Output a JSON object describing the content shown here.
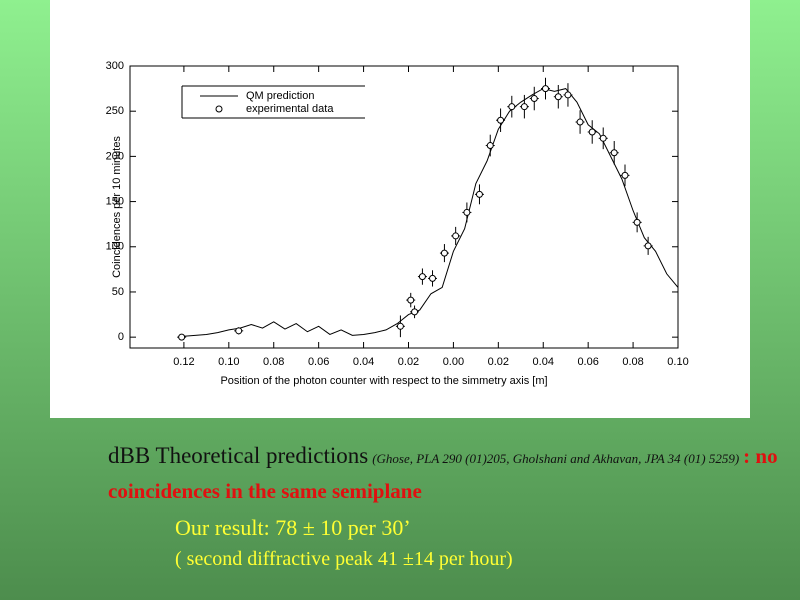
{
  "chart_data": {
    "type": "scatter",
    "xlabel": "Position of the photon counter with respect to the simmetry axis [m]",
    "ylabel": "Coincidences per 10 minutes",
    "xlim": [
      -0.144,
      0.1
    ],
    "ylim": [
      -12,
      300
    ],
    "xticks": [
      {
        "value": -0.12,
        "label": "0.12"
      },
      {
        "value": -0.1,
        "label": "0.10"
      },
      {
        "value": -0.08,
        "label": "0.08"
      },
      {
        "value": -0.06,
        "label": "0.06"
      },
      {
        "value": -0.04,
        "label": "0.04"
      },
      {
        "value": -0.02,
        "label": "0.02"
      },
      {
        "value": 0,
        "label": "0.00"
      },
      {
        "value": 0.02,
        "label": "0.02"
      },
      {
        "value": 0.04,
        "label": "0.04"
      },
      {
        "value": 0.06,
        "label": "0.06"
      },
      {
        "value": 0.08,
        "label": "0.08"
      },
      {
        "value": 0.1,
        "label": "0.10"
      }
    ],
    "yticks": [
      0,
      50,
      100,
      150,
      200,
      250,
      300
    ],
    "legend": "upper left",
    "series": [
      {
        "name": "QM prediction",
        "kind": "line",
        "color": "#000000",
        "x": [
          -0.12,
          -0.115,
          -0.11,
          -0.105,
          -0.1,
          -0.095,
          -0.09,
          -0.085,
          -0.08,
          -0.075,
          -0.07,
          -0.065,
          -0.06,
          -0.055,
          -0.05,
          -0.045,
          -0.04,
          -0.035,
          -0.03,
          -0.025,
          -0.02,
          -0.015,
          -0.01,
          -0.005,
          0,
          0.005,
          0.01,
          0.015,
          0.02,
          0.025,
          0.03,
          0.035,
          0.04,
          0.045,
          0.05,
          0.055,
          0.06,
          0.065,
          0.07,
          0.075,
          0.08,
          0.085,
          0.09,
          0.095,
          0.1
        ],
        "values": [
          1,
          2,
          3,
          5,
          8,
          10,
          14,
          10,
          17,
          9,
          15,
          6,
          12,
          3,
          8,
          2,
          3,
          5,
          8,
          15,
          25,
          30,
          48,
          55,
          95,
          120,
          170,
          195,
          230,
          250,
          260,
          268,
          275,
          272,
          275,
          260,
          235,
          225,
          200,
          175,
          140,
          110,
          95,
          70,
          55
        ]
      },
      {
        "name": "experimental data",
        "kind": "points",
        "color": "#000000",
        "x": [
          -0.121,
          -0.0956,
          -0.0236,
          -0.019,
          -0.0173,
          -0.0138,
          -0.0093,
          -0.004,
          0.001,
          0.006,
          0.0116,
          0.0164,
          0.021,
          0.026,
          0.0316,
          0.036,
          0.041,
          0.0467,
          0.051,
          0.0564,
          0.0618,
          0.0667,
          0.0716,
          0.0764,
          0.0818,
          0.0867
        ],
        "values": [
          0,
          7,
          12,
          41,
          28,
          67,
          65,
          93,
          112,
          138,
          158,
          212,
          240,
          255,
          255,
          264,
          275,
          266,
          268,
          238,
          227,
          220,
          204,
          179,
          127,
          101
        ],
        "yerr": [
          3,
          4,
          12,
          8,
          7,
          9,
          9,
          10,
          10,
          11,
          11,
          12,
          13,
          12,
          13,
          13,
          12,
          13,
          13,
          13,
          13,
          12,
          13,
          12,
          11,
          10
        ],
        "xerr": [
          0.002,
          0.002,
          0.002,
          0.002,
          0.002,
          0.002,
          0.002,
          0.002,
          0.002,
          0.002,
          0.002,
          0.002,
          0.002,
          0.002,
          0.002,
          0.002,
          0.002,
          0.002,
          0.002,
          0.002,
          0.002,
          0.002,
          0.002,
          0.002,
          0.002,
          0.002
        ]
      }
    ]
  },
  "slide": {
    "heading": "dBB Theoretical predictions",
    "reference": "(Ghose, PLA 290 (01)205, Gholshani and Akhavan, JPA 34 (01) 5259)",
    "claim": ": no coincidences in the same semiplane",
    "result": "Our result: 78 ± 10 per 30’",
    "peak": "( second diffractive peak   41 ±14 per hour)"
  }
}
